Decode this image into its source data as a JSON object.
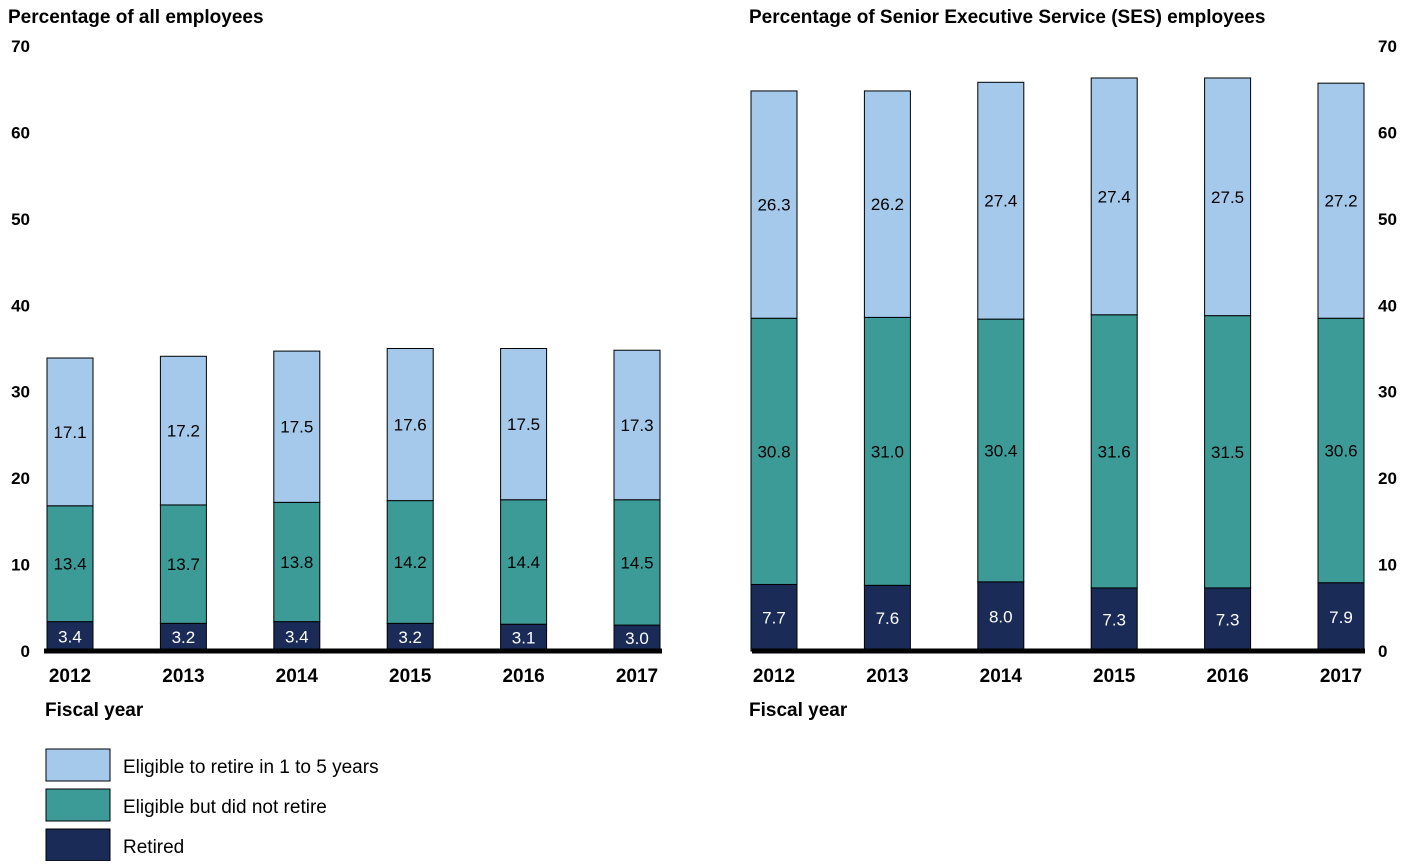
{
  "chart_data": [
    {
      "type": "bar",
      "stacked": true,
      "title": "Percentage of all employees",
      "xlabel": "Fiscal year",
      "ylabel": "",
      "ylim": [
        0,
        70
      ],
      "yticks": [
        0,
        10,
        20,
        30,
        40,
        50,
        60,
        70
      ],
      "y_axis_side": "left",
      "categories": [
        "2012",
        "2013",
        "2014",
        "2015",
        "2016",
        "2017"
      ],
      "series": [
        {
          "name": "Retired",
          "color": "#1b2b57",
          "label_color": "#ffffff",
          "values": [
            3.4,
            3.2,
            3.4,
            3.2,
            3.1,
            3.0
          ],
          "labels": [
            "3.4",
            "3.2",
            "3.4",
            "3.2",
            "3.1",
            "3.0"
          ]
        },
        {
          "name": "Eligible but did not retire",
          "color": "#3d9b97",
          "label_color": "#000000",
          "values": [
            13.4,
            13.7,
            13.8,
            14.2,
            14.4,
            14.5
          ],
          "labels": [
            "13.4",
            "13.7",
            "13.8",
            "14.2",
            "14.4",
            "14.5"
          ]
        },
        {
          "name": "Eligible to retire in 1 to 5 years",
          "color": "#a4c9ea",
          "label_color": "#000000",
          "values": [
            17.1,
            17.2,
            17.5,
            17.6,
            17.5,
            17.3
          ],
          "labels": [
            "17.1",
            "17.2",
            "17.5",
            "17.6",
            "17.5",
            "17.3"
          ]
        }
      ],
      "grid": false
    },
    {
      "type": "bar",
      "stacked": true,
      "title": "Percentage of Senior Executive Service (SES) employees",
      "xlabel": "Fiscal year",
      "ylabel": "",
      "ylim": [
        0,
        70
      ],
      "yticks": [
        0,
        10,
        20,
        30,
        40,
        50,
        60,
        70
      ],
      "y_axis_side": "right",
      "categories": [
        "2012",
        "2013",
        "2014",
        "2015",
        "2016",
        "2017"
      ],
      "series": [
        {
          "name": "Retired",
          "color": "#1b2b57",
          "label_color": "#ffffff",
          "values": [
            7.7,
            7.6,
            8.0,
            7.3,
            7.3,
            7.9
          ],
          "labels": [
            "7.7",
            "7.6",
            "8.0",
            "7.3",
            "7.3",
            "7.9"
          ]
        },
        {
          "name": "Eligible but did not retire",
          "color": "#3d9b97",
          "label_color": "#000000",
          "values": [
            30.8,
            31.0,
            30.4,
            31.6,
            31.5,
            30.6
          ],
          "labels": [
            "30.8",
            "31.0",
            "30.4",
            "31.6",
            "31.5",
            "30.6"
          ]
        },
        {
          "name": "Eligible to retire in 1 to 5 years",
          "color": "#a4c9ea",
          "label_color": "#000000",
          "values": [
            26.3,
            26.2,
            27.4,
            27.4,
            27.5,
            27.2
          ],
          "labels": [
            "26.3",
            "26.2",
            "27.4",
            "27.4",
            "27.5",
            "27.2"
          ]
        }
      ],
      "grid": false
    }
  ],
  "legend": {
    "placement": "bottom-left",
    "items": [
      {
        "label": "Eligible to retire in 1 to 5 years",
        "color": "#a4c9ea"
      },
      {
        "label": "Eligible but did not retire",
        "color": "#3d9b97"
      },
      {
        "label": "Retired",
        "color": "#1b2b57"
      }
    ]
  }
}
